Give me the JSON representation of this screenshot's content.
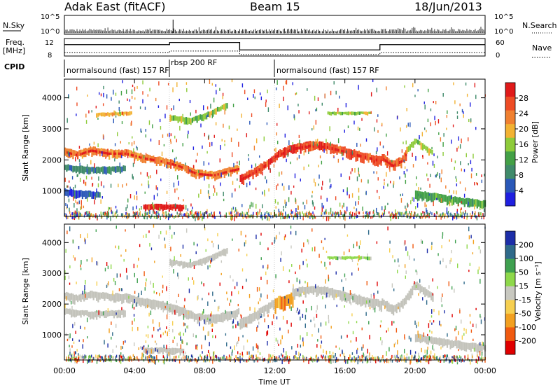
{
  "header": {
    "title": "Adak East (fitACF)",
    "beam": "Beam 15",
    "date": "18/Jun/2013"
  },
  "colors": {
    "power_scale": [
      "#1f1fe0",
      "#2a58b8",
      "#3f8a6a",
      "#43a046",
      "#8ecb3a",
      "#f2b233",
      "#f08030",
      "#ee4c25",
      "#e01a1a"
    ],
    "velocity_scale": [
      "#e00000",
      "#f05a10",
      "#f2a020",
      "#f6cf50",
      "#c8c8c0",
      "#8ed84a",
      "#3fa050",
      "#2f6a8a",
      "#1d2ea8"
    ],
    "ground_scatter": "#c3c3bb"
  },
  "chart_data": [
    {
      "type": "line",
      "name": "nsky-nsearch",
      "left_label": "N.Sky",
      "right_label": "N.Search",
      "left_ticks": [
        "10^5",
        "10^0"
      ],
      "right_ticks": [
        "10^5",
        "10^0"
      ],
      "x_range_hours": [
        0,
        24
      ]
    },
    {
      "type": "line",
      "name": "freq-nave",
      "left_label": "Freq.",
      "left_unit": "[MHz]",
      "right_label": "Nave",
      "left_ticks": [
        "12",
        "8"
      ],
      "right_ticks": [
        "60",
        "0"
      ],
      "freq_mhz": [
        {
          "x": 0,
          "y": 10.6
        },
        {
          "x": 6,
          "y": 10.6
        },
        {
          "x": 6,
          "y": 11.1
        },
        {
          "x": 10,
          "y": 11.1
        },
        {
          "x": 10,
          "y": 9.4
        },
        {
          "x": 18,
          "y": 9.4
        },
        {
          "x": 18,
          "y": 10.6
        },
        {
          "x": 24,
          "y": 10.6
        }
      ],
      "nave": [
        {
          "x": 0,
          "y": 12
        },
        {
          "x": 6,
          "y": 12
        },
        {
          "x": 6,
          "y": 17
        },
        {
          "x": 10,
          "y": 17
        },
        {
          "x": 10,
          "y": 5
        },
        {
          "x": 18,
          "y": 5
        },
        {
          "x": 18,
          "y": 12
        },
        {
          "x": 24,
          "y": 12
        }
      ]
    },
    {
      "type": "table",
      "name": "cpid",
      "label": "CPID",
      "segments": [
        {
          "start": 0,
          "end": 6,
          "text": "normalsound (fast) 157 RF"
        },
        {
          "start": 6,
          "end": 12,
          "text": "rbsp 200 RF"
        },
        {
          "start": 12,
          "end": 24,
          "text": "normalsound (fast) 157 RF"
        }
      ]
    },
    {
      "type": "heatmap",
      "name": "power",
      "ylabel": "Slant Range [km]",
      "yticks": [
        1000,
        2000,
        3000,
        4000
      ],
      "ylim": [
        180,
        4600
      ],
      "colorbar_label": "Power [dB]",
      "colorbar_ticks": [
        "28",
        "24",
        "20",
        "16",
        "12",
        "8",
        "4"
      ],
      "bands": [
        {
          "x_start": 0.0,
          "x_end": 9.9,
          "range_points": [
            [
              0.0,
              2250
            ],
            [
              0.7,
              2150
            ],
            [
              1.5,
              2300
            ],
            [
              2.5,
              2200
            ],
            [
              3.5,
              2200
            ],
            [
              4.5,
              2050
            ],
            [
              5.5,
              1950
            ],
            [
              6.5,
              1800
            ],
            [
              7.5,
              1550
            ],
            [
              8.5,
              1500
            ],
            [
              9.5,
              1650
            ],
            [
              9.9,
              1700
            ]
          ],
          "width_km": 260,
          "level": 6
        },
        {
          "x_start": 10.0,
          "x_end": 12.0,
          "range_points": [
            [
              10.0,
              1350
            ],
            [
              10.7,
              1550
            ],
            [
              11.4,
              1800
            ],
            [
              12.0,
              2050
            ]
          ],
          "width_km": 300,
          "level": 7
        },
        {
          "x_start": 12.0,
          "x_end": 18.1,
          "range_points": [
            [
              12.0,
              2100
            ],
            [
              13.0,
              2350
            ],
            [
              14.0,
              2450
            ],
            [
              15.0,
              2400
            ],
            [
              16.0,
              2250
            ],
            [
              17.0,
              2100
            ],
            [
              18.1,
              1950
            ]
          ],
          "width_km": 300,
          "level": 7
        },
        {
          "x_start": 18.1,
          "x_end": 19.5,
          "range_points": [
            [
              18.1,
              2050
            ],
            [
              18.7,
              1800
            ],
            [
              19.2,
              1950
            ],
            [
              19.5,
              2200
            ]
          ],
          "width_km": 300,
          "level": 7
        },
        {
          "x_start": 19.5,
          "x_end": 21.0,
          "range_points": [
            [
              19.5,
              2300
            ],
            [
              20.0,
              2600
            ],
            [
              20.6,
              2350
            ],
            [
              21.0,
              2200
            ]
          ],
          "width_km": 200,
          "level": 4
        },
        {
          "x_start": 0.0,
          "x_end": 3.5,
          "range_points": [
            [
              0.0,
              1750
            ],
            [
              1.5,
              1650
            ],
            [
              3.5,
              1700
            ]
          ],
          "width_km": 220,
          "level": 2
        },
        {
          "x_start": 0.0,
          "x_end": 2.0,
          "range_points": [
            [
              0.0,
              950
            ],
            [
              2.0,
              850
            ]
          ],
          "width_km": 240,
          "level": 1
        },
        {
          "x_start": 4.5,
          "x_end": 6.8,
          "range_points": [
            [
              4.5,
              470
            ],
            [
              5.6,
              480
            ],
            [
              6.8,
              450
            ]
          ],
          "width_km": 200,
          "level": 8
        },
        {
          "x_start": 6.0,
          "x_end": 9.3,
          "range_points": [
            [
              6.0,
              3350
            ],
            [
              7.2,
              3250
            ],
            [
              8.2,
              3450
            ],
            [
              9.3,
              3750
            ]
          ],
          "width_km": 200,
          "level": 4
        },
        {
          "x_start": 1.8,
          "x_end": 3.8,
          "range_points": [
            [
              1.8,
              3450
            ],
            [
              3.8,
              3500
            ]
          ],
          "width_km": 120,
          "level": 5
        },
        {
          "x_start": 20.0,
          "x_end": 24.0,
          "range_points": [
            [
              20.0,
              900
            ],
            [
              22.0,
              700
            ],
            [
              24.0,
              550
            ]
          ],
          "width_km": 260,
          "level": 3
        },
        {
          "x_start": 15.0,
          "x_end": 17.5,
          "range_points": [
            [
              15.0,
              3500
            ],
            [
              17.5,
              3500
            ]
          ],
          "width_km": 100,
          "level": 4
        }
      ]
    },
    {
      "type": "heatmap",
      "name": "velocity",
      "ylabel": "Slant Range [km]",
      "yticks": [
        1000,
        2000,
        3000,
        4000
      ],
      "ylim": [
        180,
        4600
      ],
      "colorbar_label": "Velocity [m s⁻¹]",
      "colorbar_ticks": [
        "200",
        "100",
        "50",
        "15",
        "-15",
        "-50",
        "-100",
        "-200"
      ],
      "bands": [
        {
          "x_start": 0.0,
          "x_end": 9.9,
          "range_points": [
            [
              0.0,
              2250
            ],
            [
              0.7,
              2150
            ],
            [
              1.5,
              2300
            ],
            [
              2.5,
              2200
            ],
            [
              3.5,
              2200
            ],
            [
              4.5,
              2050
            ],
            [
              5.5,
              1950
            ],
            [
              6.5,
              1800
            ],
            [
              7.5,
              1550
            ],
            [
              8.5,
              1500
            ],
            [
              9.5,
              1650
            ],
            [
              9.9,
              1700
            ]
          ],
          "width_km": 280,
          "level": 4
        },
        {
          "x_start": 10.0,
          "x_end": 12.0,
          "range_points": [
            [
              10.0,
              1350
            ],
            [
              10.7,
              1550
            ],
            [
              11.4,
              1800
            ],
            [
              12.0,
              2050
            ]
          ],
          "width_km": 300,
          "level": 4
        },
        {
          "x_start": 12.0,
          "x_end": 13.0,
          "range_points": [
            [
              12.0,
              2000
            ],
            [
              13.0,
              2150
            ]
          ],
          "width_km": 420,
          "level": 2
        },
        {
          "x_start": 13.0,
          "x_end": 18.1,
          "range_points": [
            [
              13.0,
              2350
            ],
            [
              14.0,
              2450
            ],
            [
              15.0,
              2400
            ],
            [
              16.0,
              2250
            ],
            [
              17.0,
              2100
            ],
            [
              18.1,
              1950
            ]
          ],
          "width_km": 300,
          "level": 4
        },
        {
          "x_start": 18.1,
          "x_end": 21.0,
          "range_points": [
            [
              18.1,
              2050
            ],
            [
              18.7,
              1800
            ],
            [
              19.2,
              1950
            ],
            [
              20.0,
              2600
            ],
            [
              21.0,
              2200
            ]
          ],
          "width_km": 280,
          "level": 4
        },
        {
          "x_start": 0.0,
          "x_end": 3.5,
          "range_points": [
            [
              0.0,
              1750
            ],
            [
              1.5,
              1650
            ],
            [
              3.5,
              1700
            ]
          ],
          "width_km": 220,
          "level": 4
        },
        {
          "x_start": 4.5,
          "x_end": 6.8,
          "range_points": [
            [
              4.5,
              470
            ],
            [
              5.6,
              480
            ],
            [
              6.8,
              450
            ]
          ],
          "width_km": 200,
          "level": 4
        },
        {
          "x_start": 20.0,
          "x_end": 24.0,
          "range_points": [
            [
              20.0,
              900
            ],
            [
              22.0,
              700
            ],
            [
              24.0,
              550
            ]
          ],
          "width_km": 260,
          "level": 4
        },
        {
          "x_start": 6.0,
          "x_end": 9.3,
          "range_points": [
            [
              6.0,
              3350
            ],
            [
              7.2,
              3250
            ],
            [
              8.2,
              3450
            ],
            [
              9.3,
              3750
            ]
          ],
          "width_km": 200,
          "level": 4
        },
        {
          "x_start": 15.0,
          "x_end": 17.5,
          "range_points": [
            [
              15.0,
              3500
            ],
            [
              17.5,
              3500
            ]
          ],
          "width_km": 100,
          "level": 5
        }
      ]
    }
  ],
  "time_axis": {
    "ticks": [
      "00:00",
      "04:00",
      "08:00",
      "12:00",
      "16:00",
      "20:00",
      "00:00"
    ],
    "label": "Time UT"
  }
}
